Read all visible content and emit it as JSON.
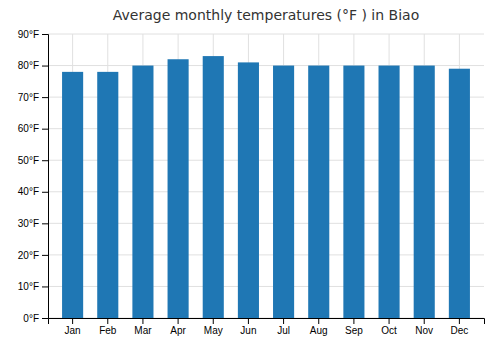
{
  "chart_data": {
    "type": "bar",
    "title": "Average monthly temperatures (°F ) in Biao",
    "categories": [
      "Jan",
      "Feb",
      "Mar",
      "Apr",
      "May",
      "Jun",
      "Jul",
      "Aug",
      "Sep",
      "Oct",
      "Nov",
      "Dec"
    ],
    "values": [
      78,
      78,
      80,
      82,
      83,
      81,
      80,
      80,
      80,
      80,
      80,
      79
    ],
    "ylim": [
      0,
      90
    ],
    "yticks": [
      {
        "value": 0,
        "label": "0°F"
      },
      {
        "value": 10,
        "label": "10°F"
      },
      {
        "value": 20,
        "label": "20°F"
      },
      {
        "value": 30,
        "label": "30°F"
      },
      {
        "value": 40,
        "label": "40°F"
      },
      {
        "value": 50,
        "label": "50°F"
      },
      {
        "value": 60,
        "label": "60°F"
      },
      {
        "value": 70,
        "label": "70°F"
      },
      {
        "value": 80,
        "label": "80°F"
      },
      {
        "value": 90,
        "label": "90°F"
      }
    ],
    "grid": true
  }
}
